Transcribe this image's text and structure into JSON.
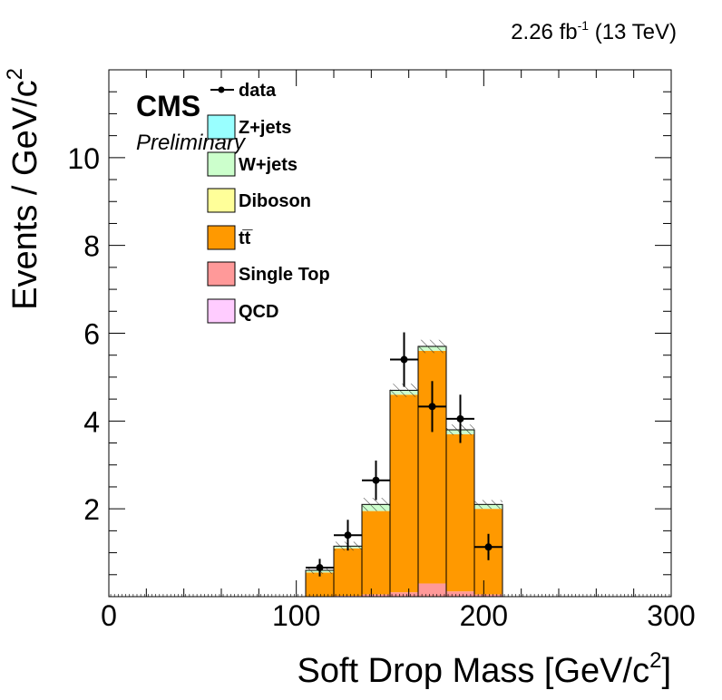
{
  "header": {
    "lumi_value": "2.26 fb",
    "lumi_exp": "-1",
    "lumi_energy": "(13 TeV)",
    "experiment": "CMS",
    "status": "Preliminary"
  },
  "chart_data": {
    "type": "bar",
    "stacked": true,
    "xlabel": "Soft Drop Mass [GeV/c",
    "xlabel_sup": "2",
    "xlabel_end": "]",
    "ylabel": "Events / GeV/c",
    "ylabel_sup": "2",
    "xlim": [
      0,
      300
    ],
    "ylim": [
      0,
      12
    ],
    "x_ticks": [
      0,
      100,
      200,
      300
    ],
    "y_ticks": [
      2,
      4,
      6,
      8,
      10
    ],
    "bin_edges": [
      105,
      120,
      135,
      150,
      165,
      180,
      195,
      210
    ],
    "series": [
      {
        "name": "QCD",
        "color": "#ffccff",
        "values": [
          0,
          0,
          0,
          0,
          0,
          0,
          0
        ]
      },
      {
        "name": "Single Top",
        "color": "#ff9999",
        "values": [
          0.0,
          0.02,
          0.05,
          0.1,
          0.3,
          0.12,
          0.05
        ]
      },
      {
        "name": "tt̅",
        "color": "#ff9900",
        "values": [
          0.55,
          1.08,
          1.9,
          4.5,
          5.3,
          3.58,
          1.95
        ]
      },
      {
        "name": "Diboson",
        "color": "#ffff99",
        "values": [
          0,
          0,
          0,
          0,
          0,
          0,
          0
        ]
      },
      {
        "name": "W+jets",
        "color": "#ccffcc",
        "values": [
          0.05,
          0.05,
          0.15,
          0.1,
          0.1,
          0.1,
          0.1
        ]
      },
      {
        "name": "Z+jets",
        "color": "#99ffff",
        "values": [
          0,
          0,
          0,
          0,
          0,
          0,
          0
        ]
      }
    ],
    "uncertainty": [
      0.08,
      0.1,
      0.15,
      0.15,
      0.15,
      0.12,
      0.1
    ],
    "data": {
      "name": "data",
      "x": [
        112.5,
        127.5,
        142.5,
        157.5,
        172.5,
        187.5,
        202.5
      ],
      "y": [
        0.66,
        1.4,
        2.65,
        5.4,
        4.33,
        4.05,
        1.13
      ],
      "err_low": [
        0.2,
        0.35,
        0.45,
        0.62,
        0.58,
        0.55,
        0.3
      ],
      "err_high": [
        0.2,
        0.35,
        0.45,
        0.62,
        0.58,
        0.55,
        0.3
      ]
    },
    "legend_order": [
      "data",
      "Z+jets",
      "W+jets",
      "Diboson",
      "tt̅",
      "Single Top",
      "QCD"
    ],
    "legend_placement": "top-left",
    "grid": false
  }
}
